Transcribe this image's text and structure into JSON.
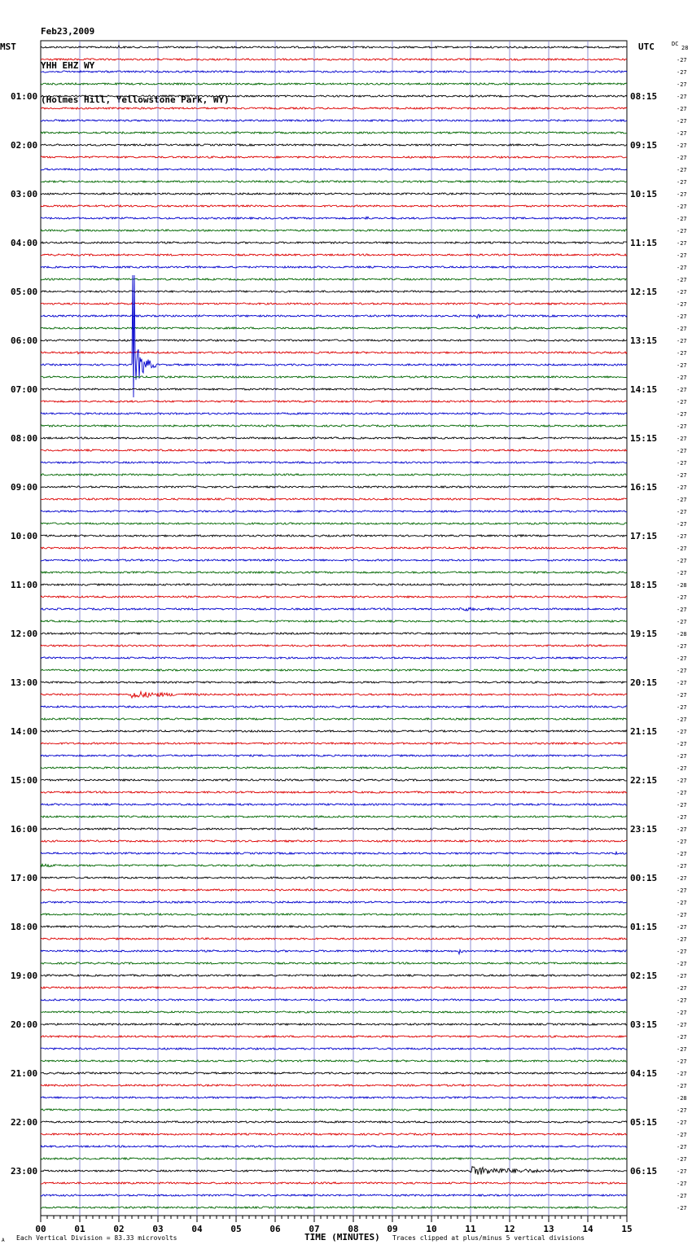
{
  "header": {
    "date": "Feb23,2009",
    "station": "YHH EHZ WY",
    "location": "(Holmes Hill, Yellowstone Park, WY)"
  },
  "axis_labels": {
    "left_tz": "MST",
    "right_tz": "UTC",
    "dc_label": "DC"
  },
  "footer": {
    "scale_note": "Each Vertical Division =   83.33 microvolts",
    "xlabel": "TIME (MINUTES)",
    "clip_note": "Traces clipped at plus/minus 5 vertical divisions",
    "corner_mark": "A"
  },
  "colors": {
    "cycle": [
      "#000000",
      "#dd0000",
      "#0000cc",
      "#006600"
    ],
    "grid": "#7777cc"
  },
  "chart_data": {
    "type": "line",
    "title": "",
    "xlabel": "TIME (MINUTES)",
    "x_ticks": [
      "00",
      "01",
      "02",
      "03",
      "04",
      "05",
      "06",
      "07",
      "08",
      "09",
      "10",
      "11",
      "12",
      "13",
      "14",
      "15"
    ],
    "xlim": [
      0,
      15
    ],
    "left_hour_labels": [
      "01:00",
      "02:00",
      "03:00",
      "04:00",
      "05:00",
      "06:00",
      "07:00",
      "08:00",
      "09:00",
      "10:00",
      "11:00",
      "12:00",
      "13:00",
      "14:00",
      "15:00",
      "16:00",
      "17:00",
      "18:00",
      "19:00",
      "20:00",
      "21:00",
      "22:00",
      "23:00"
    ],
    "right_hour_labels": [
      "08:15",
      "09:15",
      "10:15",
      "11:15",
      "12:15",
      "13:15",
      "14:15",
      "15:15",
      "16:15",
      "17:15",
      "18:15",
      "19:15",
      "20:15",
      "21:15",
      "22:15",
      "23:15",
      "00:15",
      "01:15",
      "02:15",
      "03:15",
      "04:15",
      "05:15",
      "06:15"
    ],
    "dc_first": "28",
    "dc_offsets": [
      "-27",
      "-27",
      "-27",
      "-27",
      "-27",
      "-27",
      "-27",
      "-27",
      "-27",
      "-27",
      "-27",
      "-27",
      "-27",
      "-27",
      "-27",
      "-27",
      "-27",
      "-27",
      "-27",
      "-27",
      "-27",
      "-27",
      "-27",
      "-27",
      "-27",
      "-27",
      "-27",
      "-27",
      "-27",
      "-27",
      "-27",
      "-27",
      "-27",
      "-27",
      "-27",
      "-27",
      "-27",
      "-27",
      "-27",
      "-27",
      "-27",
      "-27",
      "-27",
      "-28",
      "-27",
      "-27",
      "-27",
      "-28",
      "-27",
      "-27",
      "-27",
      "-27",
      "-27",
      "-27",
      "-27",
      "-27",
      "-27",
      "-27",
      "-27",
      "-27",
      "-27",
      "-27",
      "-27",
      "-27",
      "-27",
      "-27",
      "-27",
      "-27",
      "-27",
      "-27",
      "-27",
      "-27",
      "-27",
      "-27",
      "-27",
      "-27",
      "-27",
      "-27",
      "-27",
      "-27",
      "-27",
      "-27",
      "-27",
      "-27",
      "-27",
      "-28",
      "-27",
      "-27",
      "-27",
      "-27",
      "-27",
      "-27",
      "-27",
      "-27",
      "-27"
    ],
    "n_traces": 96,
    "events": [
      {
        "trace": 0,
        "minute": 2.0,
        "amp": 5,
        "dur": 0.1
      },
      {
        "trace": 3,
        "minute": 4.8,
        "amp": 3,
        "dur": 0.1
      },
      {
        "trace": 14,
        "minute": 8.3,
        "amp": 14,
        "dur": 0.1
      },
      {
        "trace": 22,
        "minute": 11.15,
        "amp": 6,
        "dur": 0.2
      },
      {
        "trace": 25,
        "minute": 0.9,
        "amp": 3,
        "dur": 0.4
      },
      {
        "trace": 26,
        "minute": 2.35,
        "amp": 75,
        "dur": 0.6
      },
      {
        "trace": 40,
        "minute": 12.1,
        "amp": 3,
        "dur": 0.3
      },
      {
        "trace": 46,
        "minute": 10.7,
        "amp": 4,
        "dur": 1.2
      },
      {
        "trace": 53,
        "minute": 2.3,
        "amp": 9,
        "dur": 1.8
      },
      {
        "trace": 66,
        "minute": 14.7,
        "amp": 3,
        "dur": 0.3
      },
      {
        "trace": 67,
        "minute": 0.0,
        "amp": 3,
        "dur": 0.6
      },
      {
        "trace": 74,
        "minute": 10.7,
        "amp": 7,
        "dur": 0.2
      },
      {
        "trace": 92,
        "minute": 11.0,
        "amp": 10,
        "dur": 3.0
      }
    ]
  }
}
